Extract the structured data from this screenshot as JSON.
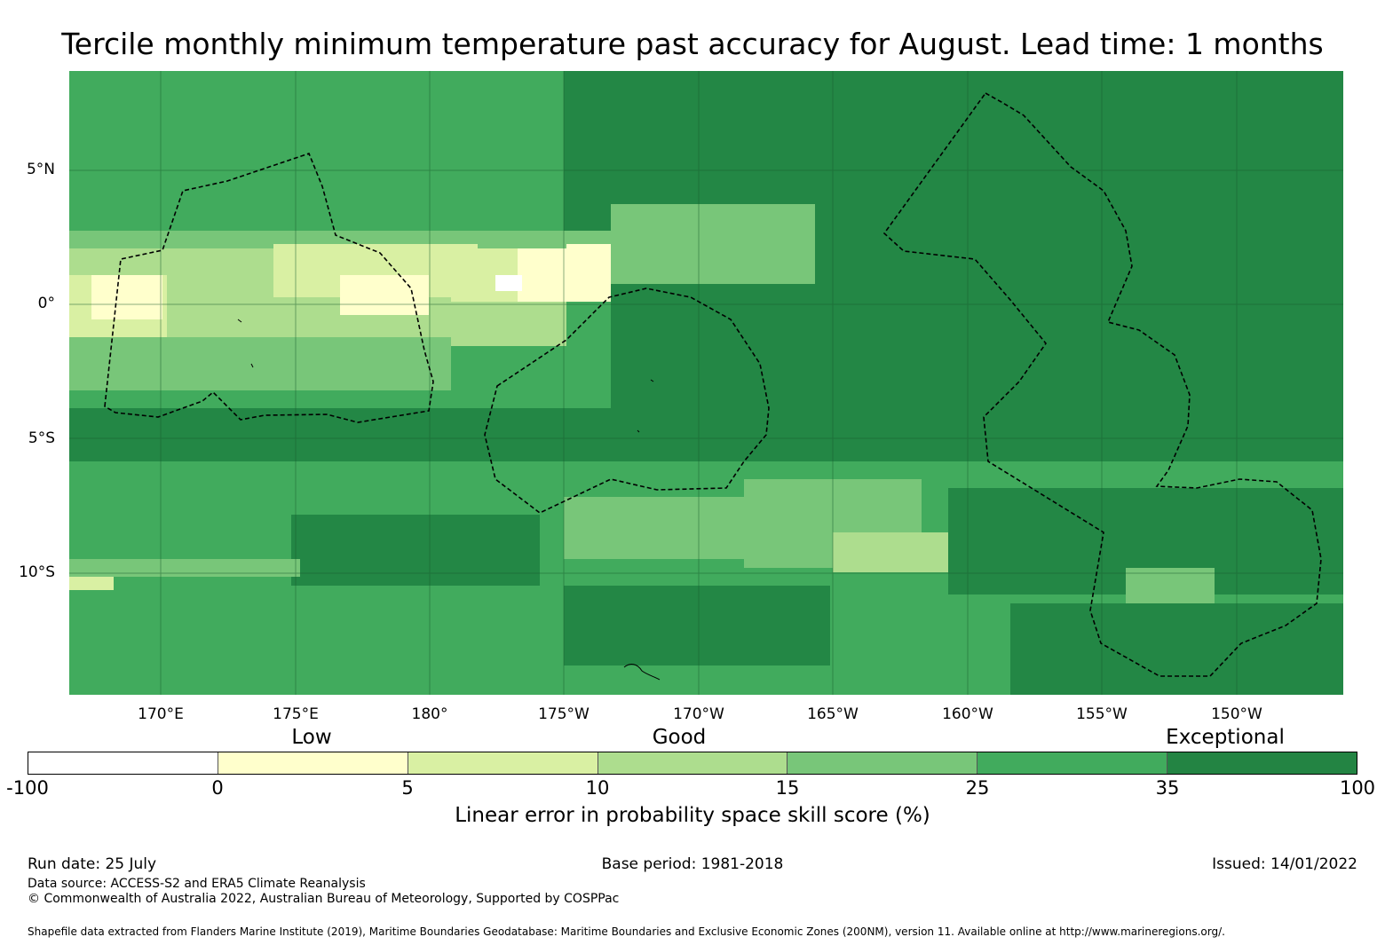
{
  "title": "Tercile monthly minimum temperature past accuracy for August. Lead time: 1 months",
  "map": {
    "lat_labels": [
      "5°N",
      "0°",
      "5°S",
      "10°S"
    ],
    "lon_labels": [
      "170°E",
      "175°E",
      "180°",
      "175°W",
      "170°W",
      "165°W",
      "160°W",
      "155°W",
      "150°W"
    ]
  },
  "legend": {
    "categories": [
      "Low",
      "Good",
      "Exceptional"
    ],
    "ticks": [
      "-100",
      "0",
      "5",
      "10",
      "15",
      "25",
      "35",
      "100"
    ],
    "colors": [
      "#ffffff",
      "#ffffcc",
      "#d9f0a3",
      "#addd8e",
      "#78c679",
      "#41ab5d",
      "#238443"
    ],
    "label": "Linear error in probability space skill score (%)"
  },
  "footer": {
    "run_date": "Run date: 25 July",
    "base_period": "Base period: 1981-2018",
    "issued": "Issued: 14/01/2022",
    "data_source": "Data source: ACCESS-S2 and ERA5 Climate Reanalysis",
    "copyright": "© Commonwealth of Australia 2022, Australian Bureau of Meteorology, Supported by COSPPac",
    "shapefile_note": "Shapefile data extracted from Flanders Marine Institute (2019), Maritime Boundaries Geodatabase: Maritime Boundaries and Exclusive Economic Zones (200NM), version 11. Available online at http://www.marineregions.org/."
  }
}
